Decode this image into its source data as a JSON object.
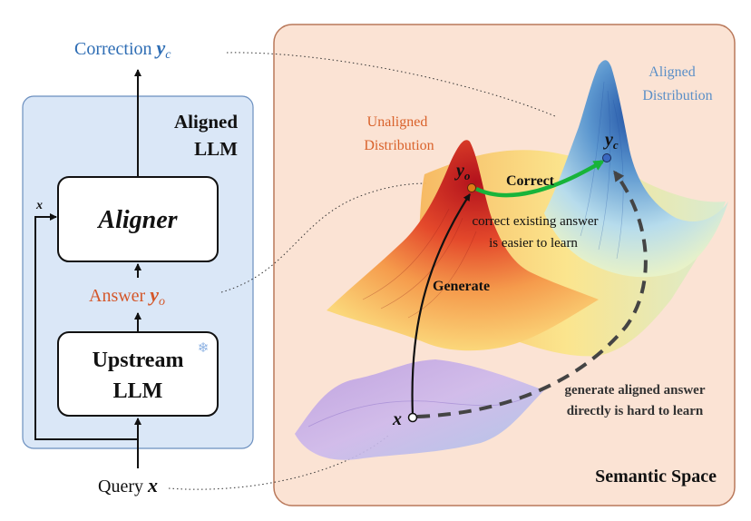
{
  "left_panel": {
    "correction_label": "Correction",
    "correction_symbol": "y",
    "correction_sub": "c",
    "aligned_llm_line1": "Aligned",
    "aligned_llm_line2": "LLM",
    "x_label": "x",
    "aligner_label": "Aligner",
    "answer_label": "Answer",
    "answer_symbol": "y",
    "answer_sub": "o",
    "upstream_line1": "Upstream",
    "upstream_line2": "LLM",
    "snowflake_glyph": "❄",
    "query_label": "Query",
    "query_symbol": "x"
  },
  "semantic_space": {
    "title": "Semantic Space",
    "aligned_dist_line1": "Aligned",
    "aligned_dist_line2": "Distribution",
    "unaligned_dist_line1": "Unaligned",
    "unaligned_dist_line2": "Distribution",
    "yc_symbol": "y",
    "yc_sub": "c",
    "yo_symbol": "y",
    "yo_sub": "o",
    "x_symbol": "x",
    "correct_label": "Correct",
    "correct_note_line1": "correct existing answer",
    "correct_note_line2": "is easier to learn",
    "generate_label": "Generate",
    "direct_note_line1": "generate aligned answer",
    "direct_note_line2": "directly is hard to learn"
  },
  "colors": {
    "correction_blue": "#2e6db4",
    "answer_orange": "#d4572a",
    "aligned_dist_blue": "#5b8fc7",
    "unaligned_dist_orange": "#d9622b",
    "panel_fill": "#dae7f7",
    "panel_stroke": "#6b8fbf",
    "semantic_fill": "#fbe3d4",
    "semantic_stroke": "#b9785a",
    "correct_arrow_green": "#18b43a",
    "snowflake_blue": "#8fb3e3"
  }
}
